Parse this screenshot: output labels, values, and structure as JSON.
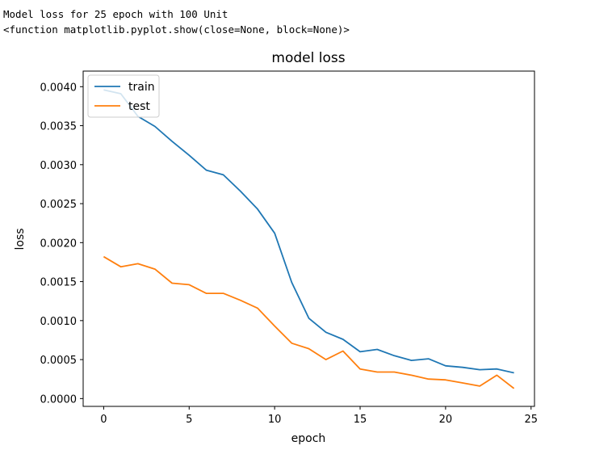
{
  "console": {
    "line1": "Model loss for 25 epoch with 100 Unit",
    "line2": "<function matplotlib.pyplot.show(close=None, block=None)>"
  },
  "chart_data": {
    "type": "line",
    "title": "model loss",
    "xlabel": "epoch",
    "ylabel": "loss",
    "xlim": [
      -1.2,
      25.2
    ],
    "ylim": [
      -0.0001,
      0.0042
    ],
    "xticks": [
      0,
      5,
      10,
      15,
      20,
      25
    ],
    "yticks": [
      0.0,
      0.0005,
      0.001,
      0.0015,
      0.002,
      0.0025,
      0.003,
      0.0035,
      0.004
    ],
    "ytick_labels": [
      "0.0000",
      "0.0005",
      "0.0010",
      "0.0015",
      "0.0020",
      "0.0025",
      "0.0030",
      "0.0035",
      "0.0040"
    ],
    "grid": false,
    "legend_position": "upper left",
    "x": [
      0,
      1,
      2,
      3,
      4,
      5,
      6,
      7,
      8,
      9,
      10,
      11,
      12,
      13,
      14,
      15,
      16,
      17,
      18,
      19,
      20,
      21,
      22,
      23,
      24
    ],
    "series": [
      {
        "name": "train",
        "color": "#1f77b4",
        "values": [
          0.00396,
          0.00391,
          0.00362,
          0.00349,
          0.0033,
          0.00312,
          0.00293,
          0.00287,
          0.00266,
          0.00243,
          0.00212,
          0.00149,
          0.00103,
          0.00085,
          0.00076,
          0.0006,
          0.00063,
          0.00055,
          0.00049,
          0.00051,
          0.00042,
          0.0004,
          0.00037,
          0.00038,
          0.00033
        ]
      },
      {
        "name": "test",
        "color": "#ff7f0e",
        "values": [
          0.00182,
          0.00169,
          0.00173,
          0.00166,
          0.00148,
          0.00146,
          0.00135,
          0.00135,
          0.00126,
          0.00116,
          0.00093,
          0.00071,
          0.00064,
          0.0005,
          0.00061,
          0.00038,
          0.00034,
          0.00034,
          0.0003,
          0.00025,
          0.00024,
          0.0002,
          0.00016,
          0.0003,
          0.00013
        ]
      }
    ]
  }
}
